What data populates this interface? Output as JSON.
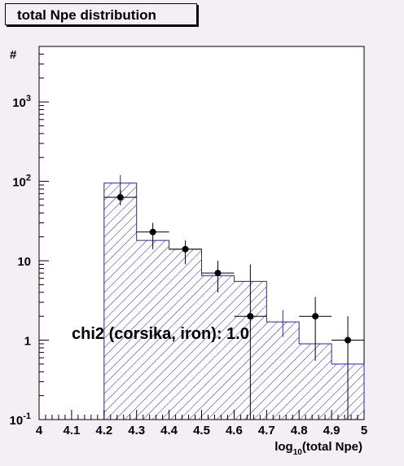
{
  "title": "total Npe distribution",
  "chart_data": {
    "type": "bar",
    "title": "total Npe distribution",
    "xlabel": "log10(total Npe)",
    "xlabel_base": "log",
    "xlabel_sub": "10",
    "xlabel_rest": "(total Npe)",
    "ylabel": "#",
    "xlim": [
      4,
      5
    ],
    "ylim": [
      0.1,
      5000
    ],
    "yscale": "log",
    "x_ticks": [
      "4",
      "4.1",
      "4.2",
      "4.3",
      "4.4",
      "4.5",
      "4.6",
      "4.7",
      "4.8",
      "4.9",
      "5"
    ],
    "y_ticks": [
      {
        "value": 0.1,
        "base": "10",
        "exp": "-1"
      },
      {
        "value": 1,
        "base": "1",
        "exp": ""
      },
      {
        "value": 10,
        "base": "10",
        "exp": ""
      },
      {
        "value": 100,
        "base": "10",
        "exp": "2"
      },
      {
        "value": 1000,
        "base": "10",
        "exp": "3"
      }
    ],
    "histogram": {
      "name": "corsika, iron",
      "color": "#2222cc",
      "bins": [
        {
          "x0": 4.2,
          "x1": 4.3,
          "value": 95
        },
        {
          "x0": 4.3,
          "x1": 4.4,
          "value": 18
        },
        {
          "x0": 4.4,
          "x1": 4.5,
          "value": 14
        },
        {
          "x0": 4.5,
          "x1": 4.6,
          "value": 6.5
        },
        {
          "x0": 4.6,
          "x1": 4.7,
          "value": 5.5
        },
        {
          "x0": 4.7,
          "x1": 4.8,
          "value": 1.7
        },
        {
          "x0": 4.8,
          "x1": 4.9,
          "value": 0.9
        },
        {
          "x0": 4.9,
          "x1": 5.0,
          "value": 0.5
        }
      ],
      "errors": [
        {
          "x": 4.25,
          "low": 70,
          "high": 120
        },
        {
          "x": 4.75,
          "low": 1.1,
          "high": 2.4
        }
      ]
    },
    "data_points": [
      {
        "x": 4.25,
        "y": 63,
        "ylow": 50,
        "yhigh": 78,
        "xerr": 0.05
      },
      {
        "x": 4.35,
        "y": 23,
        "ylow": 14,
        "yhigh": 30,
        "xerr": 0.05
      },
      {
        "x": 4.45,
        "y": 14,
        "ylow": 9,
        "yhigh": 18,
        "xerr": 0.05
      },
      {
        "x": 4.55,
        "y": 7,
        "ylow": 4,
        "yhigh": 10,
        "xerr": 0.05
      },
      {
        "x": 4.65,
        "y": 2,
        "ylow": 0.1,
        "yhigh": 9,
        "xerr": 0.05
      },
      {
        "x": 4.85,
        "y": 2,
        "ylow": 0.55,
        "yhigh": 3.5,
        "xerr": 0.05
      },
      {
        "x": 4.95,
        "y": 1,
        "ylow": 0.1,
        "yhigh": 2,
        "xerr": 0.05
      }
    ],
    "annotation": "chi2 (corsika, iron): 1.0"
  }
}
